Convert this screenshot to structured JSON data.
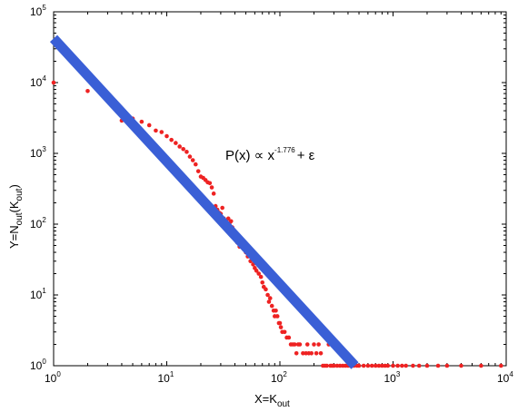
{
  "chart_data": {
    "type": "scatter",
    "xscale": "log",
    "yscale": "log",
    "xlim": [
      1,
      10000
    ],
    "ylim": [
      1,
      100000
    ],
    "grid": false,
    "xlabel": {
      "base": "X=K",
      "sub": "out"
    },
    "ylabel": {
      "base": "Y=N",
      "sub1": "out",
      "mid": "(K",
      "sub2": "out",
      "end": ")"
    },
    "xticks": [
      {
        "value": 1,
        "base": "10",
        "exp": "0"
      },
      {
        "value": 10,
        "base": "10",
        "exp": "1"
      },
      {
        "value": 100,
        "base": "10",
        "exp": "2"
      },
      {
        "value": 1000,
        "base": "10",
        "exp": "3"
      },
      {
        "value": 10000,
        "base": "10",
        "exp": "4"
      }
    ],
    "yticks": [
      {
        "value": 1,
        "base": "10",
        "exp": "0"
      },
      {
        "value": 10,
        "base": "10",
        "exp": "1"
      },
      {
        "value": 100,
        "base": "10",
        "exp": "2"
      },
      {
        "value": 1000,
        "base": "10",
        "exp": "3"
      },
      {
        "value": 10000,
        "base": "10",
        "exp": "4"
      },
      {
        "value": 100000,
        "base": "10",
        "exp": "5"
      }
    ],
    "annotation": {
      "prefix": "P(x) ∝ x",
      "exponent": "-1.776",
      "suffix": "+ ε"
    },
    "fit_line": {
      "color": "#3a5fd6",
      "x": [
        1,
        460
      ],
      "y": [
        42000,
        1
      ]
    },
    "series": [
      {
        "color": "#ee2222",
        "x": [
          1,
          2,
          4,
          5,
          6,
          7,
          8,
          9,
          10,
          11,
          12,
          13,
          14,
          15,
          16,
          17,
          18,
          19,
          20,
          21,
          22,
          23,
          24,
          25,
          26,
          27,
          28,
          29,
          30,
          31,
          32,
          33,
          34,
          35,
          36,
          37,
          38,
          39,
          40,
          42,
          44,
          46,
          48,
          50,
          52,
          55,
          58,
          60,
          62,
          65,
          68,
          70,
          72,
          75,
          78,
          80,
          82,
          85,
          88,
          90,
          92,
          95,
          98,
          100,
          102,
          105,
          110,
          115,
          120,
          125,
          130,
          135,
          140,
          145,
          150,
          160,
          170,
          175,
          180,
          190,
          200,
          210,
          220,
          230,
          240,
          250,
          260,
          270,
          280,
          290,
          300,
          320,
          340,
          360,
          380,
          400,
          420,
          450,
          480,
          500,
          550,
          600,
          650,
          700,
          750,
          800,
          850,
          900,
          1000,
          1100,
          1200,
          1300,
          1500,
          1700,
          2000,
          2500,
          3000,
          4000,
          6000,
          9000
        ],
        "y": [
          10000,
          7600,
          2900,
          3100,
          2800,
          2500,
          2100,
          2000,
          1750,
          1550,
          1400,
          1250,
          1150,
          1050,
          900,
          800,
          700,
          560,
          470,
          450,
          420,
          390,
          380,
          330,
          270,
          180,
          160,
          145,
          140,
          170,
          120,
          110,
          100,
          120,
          105,
          110,
          90,
          75,
          65,
          55,
          48,
          50,
          44,
          40,
          35,
          30,
          27,
          24,
          22,
          20,
          18,
          15,
          13,
          12,
          10,
          8,
          9,
          7,
          6,
          5,
          6,
          5,
          4,
          4,
          3.5,
          3,
          3,
          2.5,
          2.5,
          2,
          2,
          2,
          1.5,
          2,
          2,
          1.5,
          1.5,
          2,
          1.5,
          1.5,
          2,
          1.5,
          2,
          1.5,
          1,
          1,
          1,
          2,
          1,
          1,
          1,
          1,
          1,
          1,
          1,
          1,
          1,
          1,
          1,
          1,
          1,
          1,
          1,
          1,
          1,
          1,
          1,
          1,
          1,
          1,
          1,
          1,
          1,
          1,
          1,
          1,
          1,
          1,
          1,
          1
        ]
      }
    ]
  }
}
